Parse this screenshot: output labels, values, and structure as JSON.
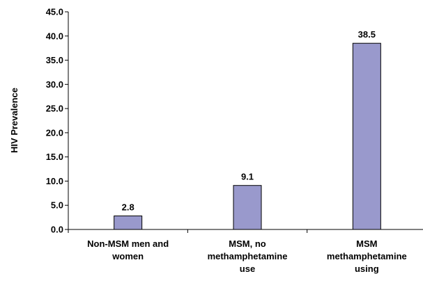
{
  "chart_data": {
    "type": "bar",
    "title": "",
    "xlabel": "",
    "ylabel": "HIV Prevalence",
    "ylim": [
      0,
      45
    ],
    "ytick_step": 5,
    "ytick_decimals": 1,
    "grid": false,
    "legend": "none",
    "bar_color": "#9999cc",
    "bar_edge_color": "#000000",
    "categories": [
      "Non-MSM men and women",
      "MSM, no methamphetamine use",
      "MSM methamphetamine using"
    ],
    "category_label_lines": [
      [
        "Non-MSM men and",
        "women"
      ],
      [
        "MSM, no",
        "methamphetamine",
        "use"
      ],
      [
        "MSM",
        "methamphetamine",
        "using"
      ]
    ],
    "values": [
      2.8,
      9.1,
      38.5
    ],
    "value_labels": [
      "2.8",
      "9.1",
      "38.5"
    ]
  }
}
